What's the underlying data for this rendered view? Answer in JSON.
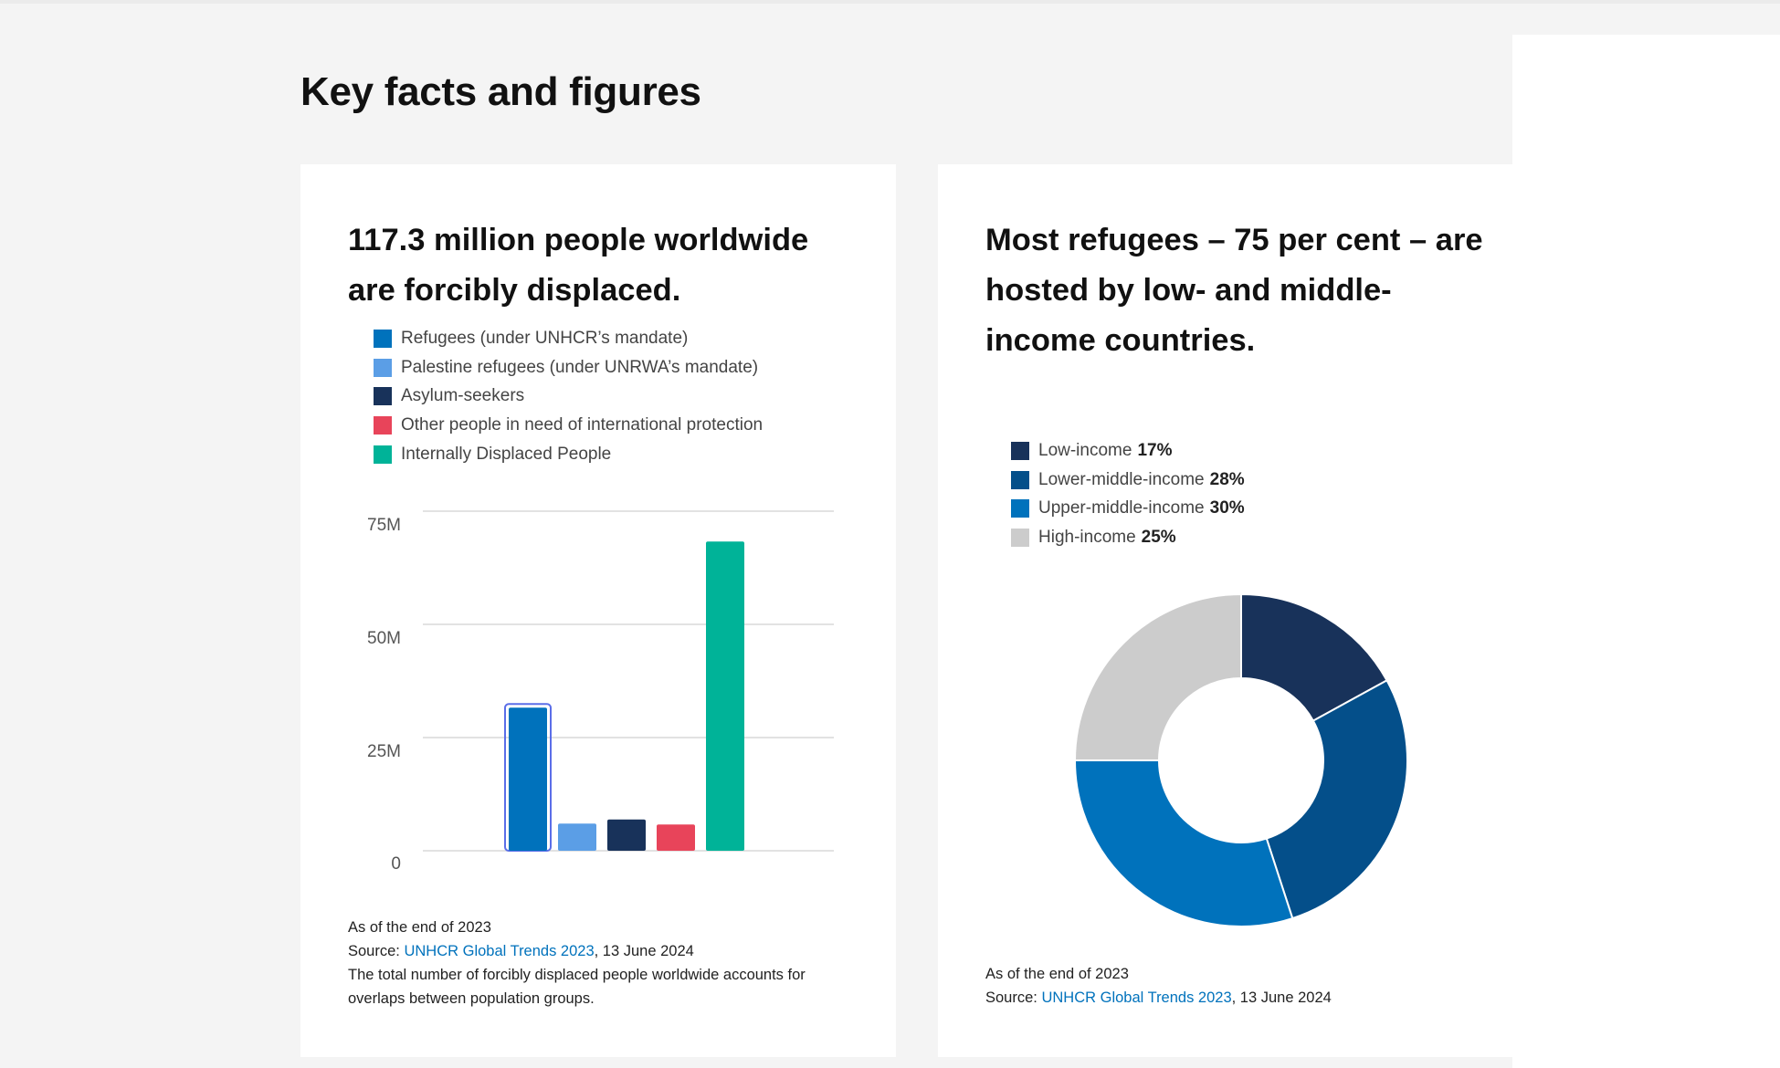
{
  "section": {
    "title": "Key facts and figures"
  },
  "colors": {
    "page_bg": "#f4f4f4",
    "card_bg": "#ffffff",
    "link": "#0072bc",
    "grid": "#e2e2e2",
    "highlight_outline": "#5b6ee8"
  },
  "displacement": {
    "heading": "117.3 million people worldwide are forcibly displaced.",
    "legend": [
      {
        "label": "Refugees (under UNHCR’s mandate)",
        "color": "#0072bc"
      },
      {
        "label": "Palestine refugees (under UNRWA’s mandate)",
        "color": "#5b9ee6"
      },
      {
        "label": "Asylum-seekers",
        "color": "#18325a"
      },
      {
        "label": "Other people in need of international protection",
        "color": "#e8445a"
      },
      {
        "label": "Internally Displaced People",
        "color": "#00b398"
      }
    ],
    "notes": {
      "as_of": "As of the end of 2023",
      "source_prefix": "Source: ",
      "source_link": "UNHCR Global Trends 2023",
      "source_suffix": ", 13 June 2024",
      "footnote": "The total number of forcibly displaced people worldwide accounts for overlaps between population groups."
    }
  },
  "hosting": {
    "heading": "Most refugees – 75 per cent – are hosted by low- and middle-income countries.",
    "legend": [
      {
        "label": "Low-income",
        "pct": "17%",
        "color": "#18325a"
      },
      {
        "label": "Lower-middle-income",
        "pct": "28%",
        "color": "#044f8a"
      },
      {
        "label": "Upper-middle-income",
        "pct": "30%",
        "color": "#0072bc"
      },
      {
        "label": "High-income",
        "pct": "25%",
        "color": "#cccccc"
      }
    ],
    "notes": {
      "as_of": "As of the end of 2023",
      "source_prefix": "Source: ",
      "source_link": "UNHCR Global Trends 2023",
      "source_suffix": ", 13 June 2024"
    }
  },
  "chart_data": [
    {
      "type": "bar",
      "title": "117.3 million people worldwide are forcibly displaced.",
      "categories": [
        "Refugees (under UNHCR’s mandate)",
        "Palestine refugees (under UNRWA’s mandate)",
        "Asylum-seekers",
        "Other people in need of international protection",
        "Internally Displaced People"
      ],
      "values": [
        31.6,
        6.0,
        6.9,
        5.8,
        68.3
      ],
      "colors": [
        "#0072bc",
        "#5b9ee6",
        "#18325a",
        "#e8445a",
        "#00b398"
      ],
      "highlighted_index": 0,
      "ylim": [
        0,
        75
      ],
      "yticks": [
        0,
        25,
        50,
        75
      ],
      "ytick_labels": [
        "0",
        "25M",
        "50M",
        "75M"
      ],
      "xlabel": "",
      "ylabel": "",
      "grid": true,
      "legend": "top-left"
    },
    {
      "type": "pie",
      "title": "Most refugees – 75 per cent – are hosted by low- and middle-income countries.",
      "donut": true,
      "categories": [
        "Low-income",
        "Lower-middle-income",
        "Upper-middle-income",
        "High-income"
      ],
      "values": [
        17,
        28,
        30,
        25
      ],
      "colors": [
        "#18325a",
        "#044f8a",
        "#0072bc",
        "#cccccc"
      ],
      "unit": "%",
      "legend": "top-left"
    }
  ]
}
